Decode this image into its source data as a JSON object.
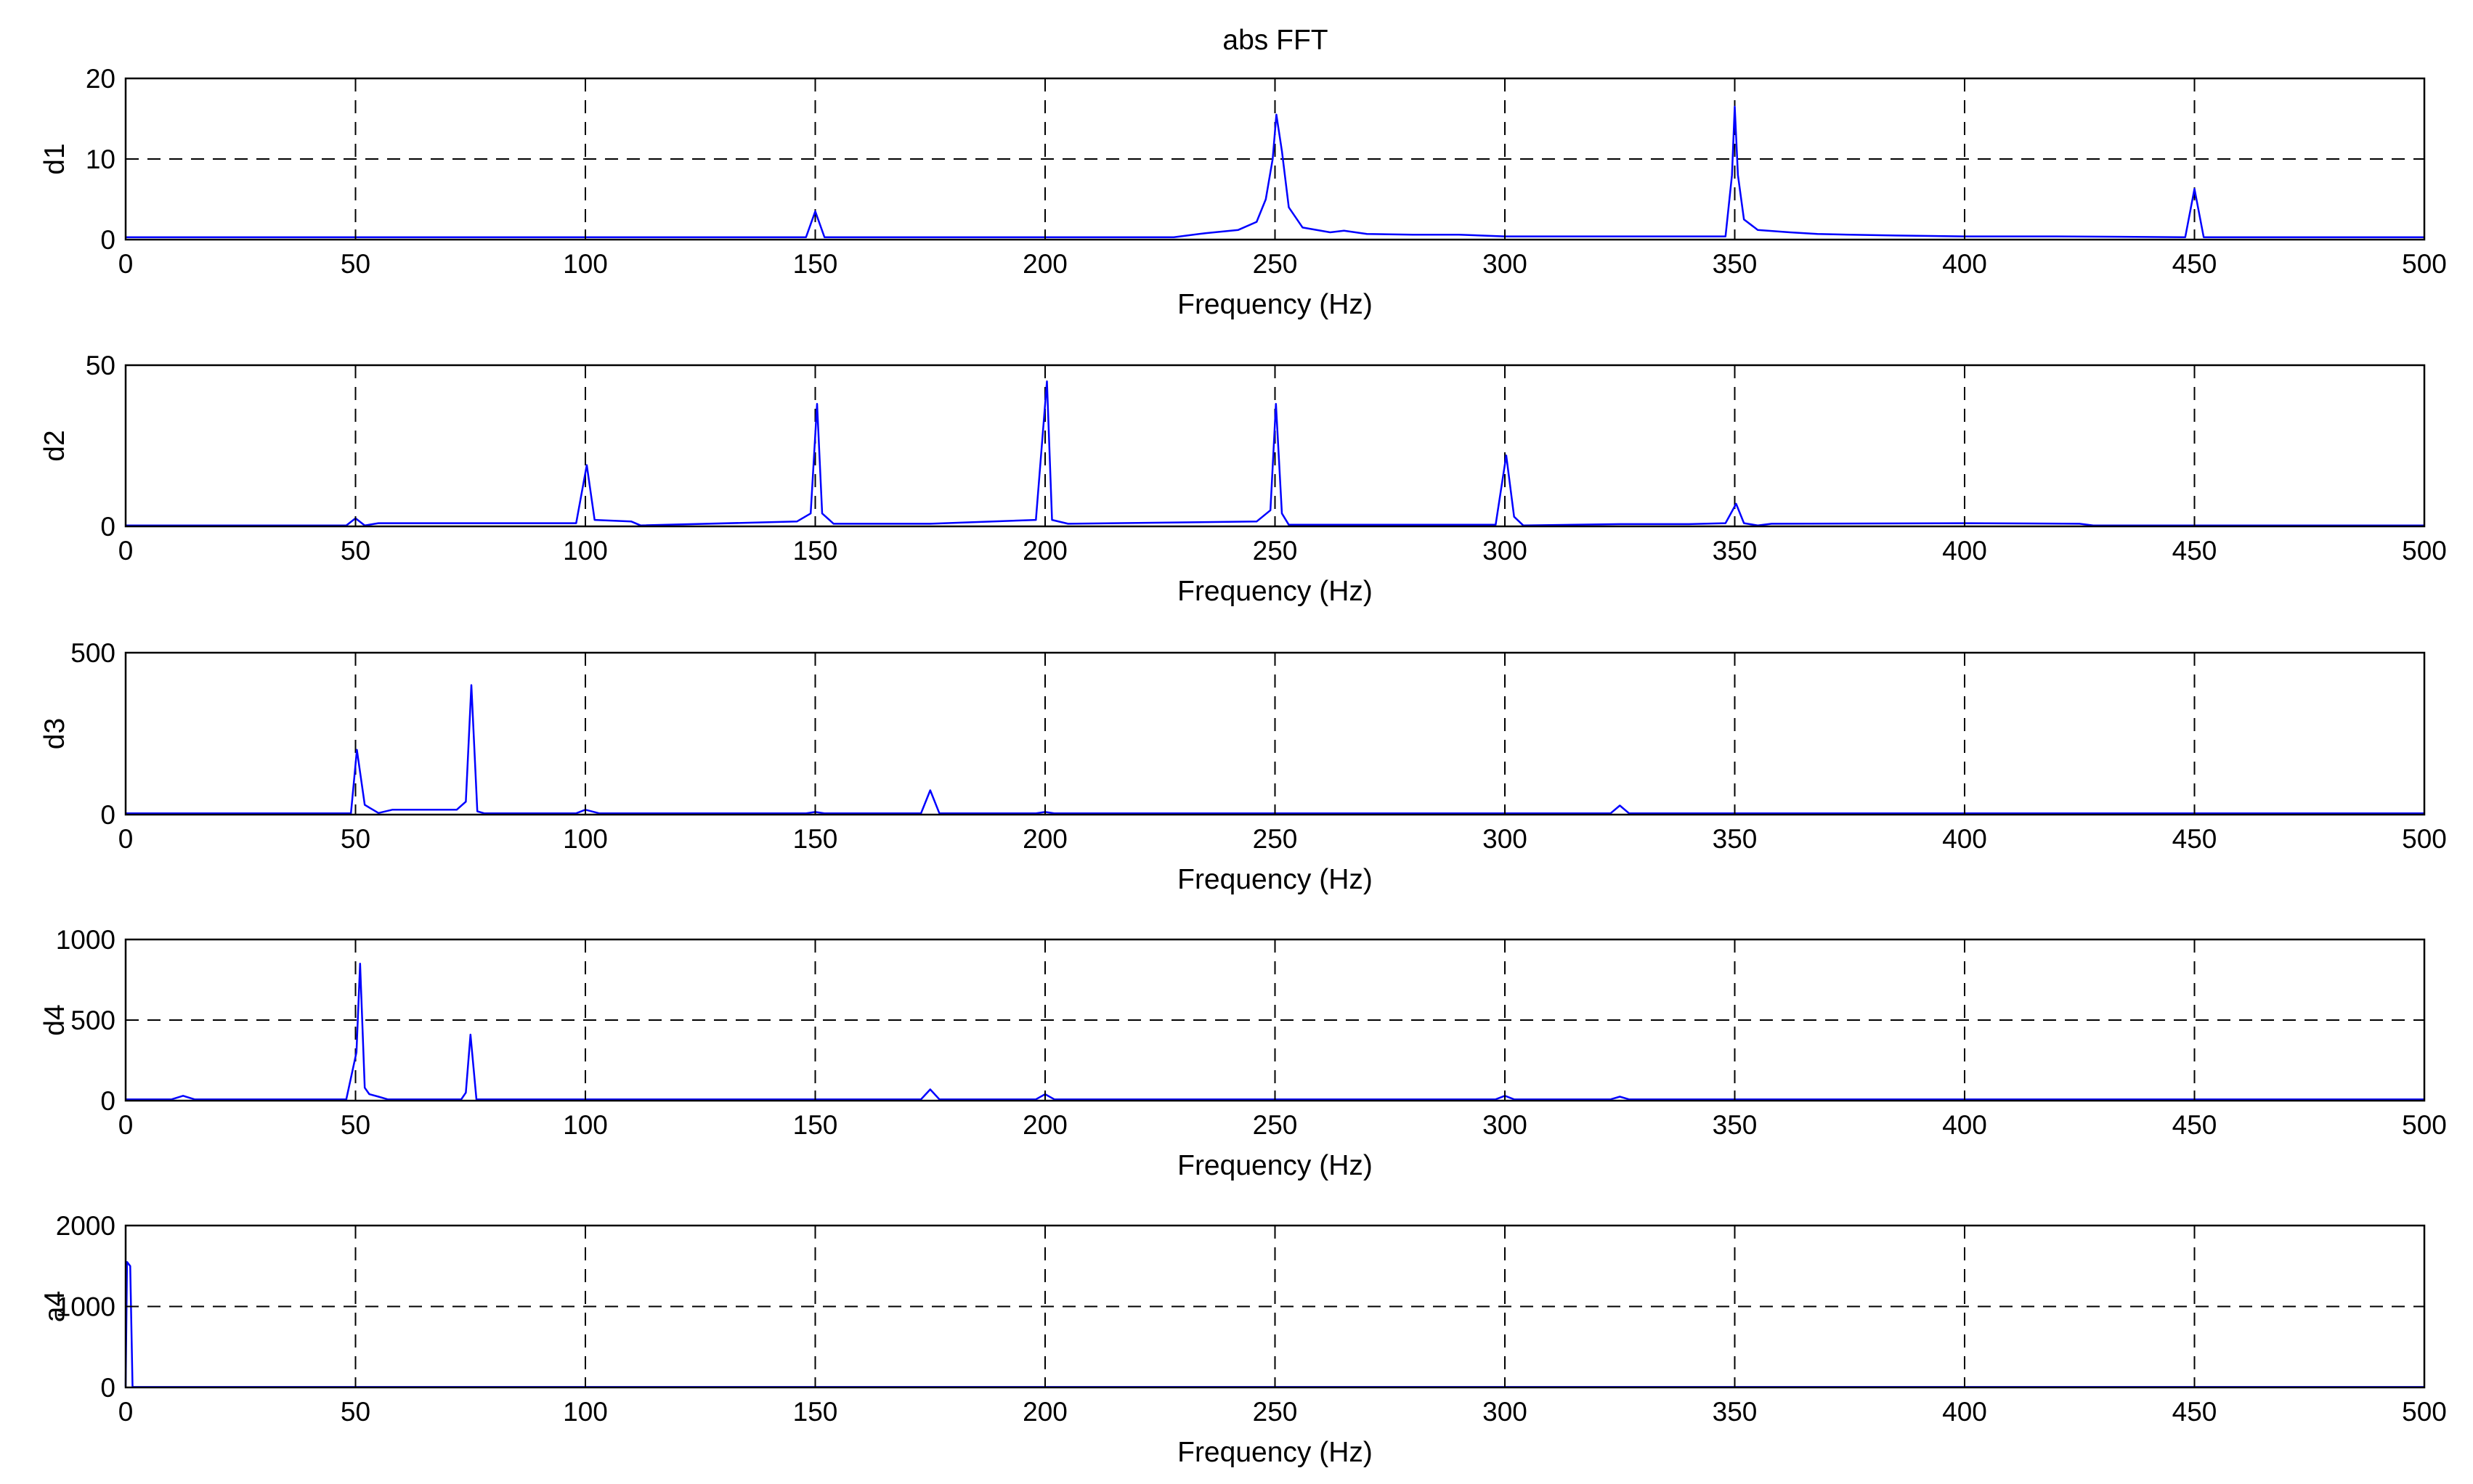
{
  "figure": {
    "title": "abs FFT"
  },
  "colors": {
    "series": "#0000ff",
    "axes": "#000000",
    "grid": "#000000",
    "background": "#ffffff"
  },
  "chart_data": [
    {
      "type": "line",
      "title": "abs FFT",
      "ylabel": "d1",
      "xlabel": "Frequency (Hz)",
      "xlim": [
        0,
        500
      ],
      "ylim": [
        0,
        20
      ],
      "xticks": [
        0,
        50,
        100,
        150,
        200,
        250,
        300,
        350,
        400,
        450,
        500
      ],
      "yticks": [
        0,
        10,
        20
      ],
      "xgrid": [
        50,
        100,
        150,
        200,
        250,
        300,
        350,
        400,
        450
      ],
      "ygrid": [
        10
      ],
      "baseline": 0.3,
      "points": [
        [
          0,
          0.3
        ],
        [
          148,
          0.3
        ],
        [
          150,
          3.5
        ],
        [
          152,
          0.3
        ],
        [
          228,
          0.3
        ],
        [
          235,
          0.8
        ],
        [
          242,
          1.2
        ],
        [
          246,
          2.2
        ],
        [
          248,
          5.0
        ],
        [
          249.5,
          10.0
        ],
        [
          250.3,
          15.5
        ],
        [
          251.5,
          11.0
        ],
        [
          253,
          4.0
        ],
        [
          256,
          1.5
        ],
        [
          262,
          0.9
        ],
        [
          265,
          1.1
        ],
        [
          270,
          0.7
        ],
        [
          280,
          0.6
        ],
        [
          290,
          0.6
        ],
        [
          300,
          0.4
        ],
        [
          320,
          0.4
        ],
        [
          340,
          0.4
        ],
        [
          348,
          0.4
        ],
        [
          349.4,
          8.0
        ],
        [
          350,
          16.5
        ],
        [
          350.7,
          8.0
        ],
        [
          352,
          2.5
        ],
        [
          355,
          1.2
        ],
        [
          362,
          0.9
        ],
        [
          368,
          0.7
        ],
        [
          375,
          0.6
        ],
        [
          385,
          0.5
        ],
        [
          400,
          0.4
        ],
        [
          420,
          0.4
        ],
        [
          448,
          0.3
        ],
        [
          450,
          6.3
        ],
        [
          452,
          0.3
        ],
        [
          500,
          0.3
        ]
      ]
    },
    {
      "type": "line",
      "title": "",
      "ylabel": "d2",
      "xlabel": "Frequency (Hz)",
      "xlim": [
        0,
        500
      ],
      "ylim": [
        0,
        50
      ],
      "xticks": [
        0,
        50,
        100,
        150,
        200,
        250,
        300,
        350,
        400,
        450,
        500
      ],
      "yticks": [
        0,
        50
      ],
      "xgrid": [
        50,
        100,
        150,
        200,
        250,
        300,
        350,
        400,
        450
      ],
      "ygrid": [],
      "baseline": 0.3,
      "points": [
        [
          0,
          0.3
        ],
        [
          48,
          0.3
        ],
        [
          50,
          2.5
        ],
        [
          52,
          0.3
        ],
        [
          55,
          1.0
        ],
        [
          98,
          1.0
        ],
        [
          100.3,
          19.0
        ],
        [
          102,
          2.0
        ],
        [
          110,
          1.5
        ],
        [
          112,
          0.3
        ],
        [
          146,
          1.5
        ],
        [
          149,
          4.0
        ],
        [
          150.4,
          38.0
        ],
        [
          151.5,
          4.0
        ],
        [
          154,
          0.8
        ],
        [
          175,
          0.8
        ],
        [
          198,
          2.0
        ],
        [
          200.4,
          45.0
        ],
        [
          201.5,
          2.0
        ],
        [
          205,
          0.8
        ],
        [
          246,
          1.5
        ],
        [
          249,
          5.0
        ],
        [
          250.2,
          38.0
        ],
        [
          251.5,
          4.0
        ],
        [
          253,
          0.5
        ],
        [
          298,
          0.5
        ],
        [
          300.3,
          22.0
        ],
        [
          302,
          3.0
        ],
        [
          304,
          0.3
        ],
        [
          325,
          0.7
        ],
        [
          340,
          0.7
        ],
        [
          348,
          1.0
        ],
        [
          350.3,
          7.0
        ],
        [
          352,
          1.0
        ],
        [
          355,
          0.3
        ],
        [
          358,
          0.8
        ],
        [
          400,
          1.0
        ],
        [
          425,
          0.8
        ],
        [
          428,
          0.3
        ],
        [
          500,
          0.3
        ]
      ]
    },
    {
      "type": "line",
      "title": "",
      "ylabel": "d3",
      "xlabel": "Frequency (Hz)",
      "xlim": [
        0,
        500
      ],
      "ylim": [
        0,
        500
      ],
      "xticks": [
        0,
        50,
        100,
        150,
        200,
        250,
        300,
        350,
        400,
        450,
        500
      ],
      "yticks": [
        0,
        500
      ],
      "xgrid": [
        50,
        100,
        150,
        200,
        250,
        300,
        350,
        400,
        450
      ],
      "ygrid": [],
      "baseline": 4,
      "points": [
        [
          0,
          4
        ],
        [
          49,
          4
        ],
        [
          50.3,
          200
        ],
        [
          52,
          30
        ],
        [
          55,
          5
        ],
        [
          58,
          15
        ],
        [
          72,
          15
        ],
        [
          74,
          40
        ],
        [
          75.2,
          400
        ],
        [
          76.5,
          10
        ],
        [
          78,
          4
        ],
        [
          98,
          4
        ],
        [
          100,
          15
        ],
        [
          103,
          4
        ],
        [
          148,
          4
        ],
        [
          150,
          8
        ],
        [
          152,
          4
        ],
        [
          173,
          4
        ],
        [
          175,
          75
        ],
        [
          177,
          4
        ],
        [
          198,
          4
        ],
        [
          200,
          8
        ],
        [
          202,
          4
        ],
        [
          323,
          4
        ],
        [
          325,
          28
        ],
        [
          327,
          4
        ],
        [
          500,
          4
        ]
      ]
    },
    {
      "type": "line",
      "title": "",
      "ylabel": "d4",
      "xlabel": "Frequency (Hz)",
      "xlim": [
        0,
        500
      ],
      "ylim": [
        0,
        1000
      ],
      "xticks": [
        0,
        50,
        100,
        150,
        200,
        250,
        300,
        350,
        400,
        450,
        500
      ],
      "yticks": [
        0,
        500,
        1000
      ],
      "xgrid": [
        50,
        100,
        150,
        200,
        250,
        300,
        350,
        400,
        450
      ],
      "ygrid": [
        500
      ],
      "baseline": 8,
      "points": [
        [
          0,
          8
        ],
        [
          10,
          8
        ],
        [
          12.5,
          30
        ],
        [
          15,
          8
        ],
        [
          48,
          8
        ],
        [
          50.2,
          300
        ],
        [
          51,
          850
        ],
        [
          52,
          80
        ],
        [
          53,
          40
        ],
        [
          55,
          25
        ],
        [
          57,
          8
        ],
        [
          73,
          8
        ],
        [
          74,
          50
        ],
        [
          75,
          410
        ],
        [
          76.3,
          8
        ],
        [
          173,
          8
        ],
        [
          175,
          70
        ],
        [
          177,
          8
        ],
        [
          198,
          8
        ],
        [
          200,
          40
        ],
        [
          202,
          8
        ],
        [
          298,
          8
        ],
        [
          300,
          30
        ],
        [
          302,
          8
        ],
        [
          323,
          8
        ],
        [
          325,
          25
        ],
        [
          327,
          8
        ],
        [
          500,
          8
        ]
      ]
    },
    {
      "type": "line",
      "title": "",
      "ylabel": "a4",
      "xlabel": "Frequency (Hz)",
      "xlim": [
        0,
        500
      ],
      "ylim": [
        0,
        2000
      ],
      "xticks": [
        0,
        50,
        100,
        150,
        200,
        250,
        300,
        350,
        400,
        450,
        500
      ],
      "yticks": [
        0,
        1000,
        2000
      ],
      "xgrid": [
        50,
        100,
        150,
        200,
        250,
        300,
        350,
        400,
        450
      ],
      "ygrid": [
        1000
      ],
      "baseline": 5,
      "points": [
        [
          0,
          10
        ],
        [
          0.3,
          1550
        ],
        [
          1,
          1500
        ],
        [
          1.5,
          5
        ],
        [
          500,
          5
        ]
      ]
    }
  ]
}
